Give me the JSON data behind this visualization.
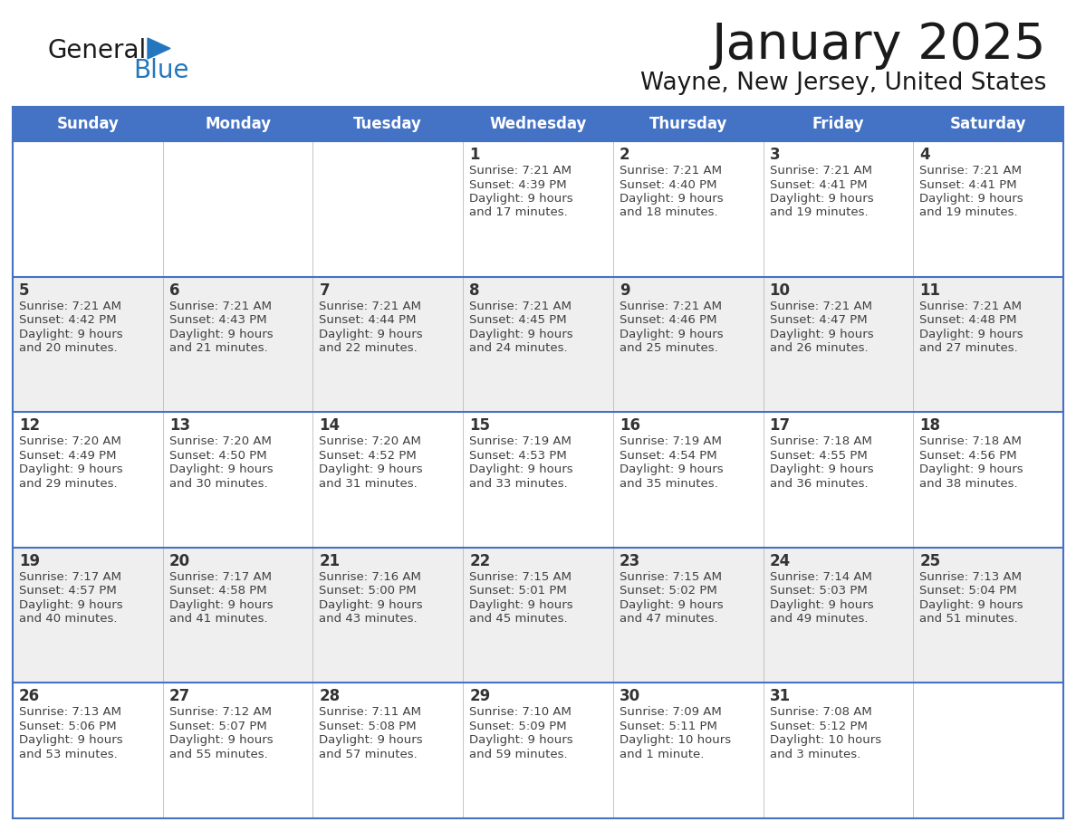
{
  "title": "January 2025",
  "subtitle": "Wayne, New Jersey, United States",
  "days_of_week": [
    "Sunday",
    "Monday",
    "Tuesday",
    "Wednesday",
    "Thursday",
    "Friday",
    "Saturday"
  ],
  "header_bg": "#4472C4",
  "header_text": "#FFFFFF",
  "row_bg_odd": "#FFFFFF",
  "row_bg_even": "#EFEFEF",
  "border_color": "#4472C4",
  "sep_color": "#4472C4",
  "text_color": "#404040",
  "day_num_color": "#333333",
  "logo_general_color": "#1a1a1a",
  "logo_blue_color": "#2477BE",
  "logo_triangle_color": "#2477BE",
  "calendar_data": [
    [
      null,
      null,
      null,
      {
        "day": 1,
        "sunrise": "7:21 AM",
        "sunset": "4:39 PM",
        "daylight": "9 hours and 17 minutes."
      },
      {
        "day": 2,
        "sunrise": "7:21 AM",
        "sunset": "4:40 PM",
        "daylight": "9 hours and 18 minutes."
      },
      {
        "day": 3,
        "sunrise": "7:21 AM",
        "sunset": "4:41 PM",
        "daylight": "9 hours and 19 minutes."
      },
      {
        "day": 4,
        "sunrise": "7:21 AM",
        "sunset": "4:41 PM",
        "daylight": "9 hours and 19 minutes."
      }
    ],
    [
      {
        "day": 5,
        "sunrise": "7:21 AM",
        "sunset": "4:42 PM",
        "daylight": "9 hours and 20 minutes."
      },
      {
        "day": 6,
        "sunrise": "7:21 AM",
        "sunset": "4:43 PM",
        "daylight": "9 hours and 21 minutes."
      },
      {
        "day": 7,
        "sunrise": "7:21 AM",
        "sunset": "4:44 PM",
        "daylight": "9 hours and 22 minutes."
      },
      {
        "day": 8,
        "sunrise": "7:21 AM",
        "sunset": "4:45 PM",
        "daylight": "9 hours and 24 minutes."
      },
      {
        "day": 9,
        "sunrise": "7:21 AM",
        "sunset": "4:46 PM",
        "daylight": "9 hours and 25 minutes."
      },
      {
        "day": 10,
        "sunrise": "7:21 AM",
        "sunset": "4:47 PM",
        "daylight": "9 hours and 26 minutes."
      },
      {
        "day": 11,
        "sunrise": "7:21 AM",
        "sunset": "4:48 PM",
        "daylight": "9 hours and 27 minutes."
      }
    ],
    [
      {
        "day": 12,
        "sunrise": "7:20 AM",
        "sunset": "4:49 PM",
        "daylight": "9 hours and 29 minutes."
      },
      {
        "day": 13,
        "sunrise": "7:20 AM",
        "sunset": "4:50 PM",
        "daylight": "9 hours and 30 minutes."
      },
      {
        "day": 14,
        "sunrise": "7:20 AM",
        "sunset": "4:52 PM",
        "daylight": "9 hours and 31 minutes."
      },
      {
        "day": 15,
        "sunrise": "7:19 AM",
        "sunset": "4:53 PM",
        "daylight": "9 hours and 33 minutes."
      },
      {
        "day": 16,
        "sunrise": "7:19 AM",
        "sunset": "4:54 PM",
        "daylight": "9 hours and 35 minutes."
      },
      {
        "day": 17,
        "sunrise": "7:18 AM",
        "sunset": "4:55 PM",
        "daylight": "9 hours and 36 minutes."
      },
      {
        "day": 18,
        "sunrise": "7:18 AM",
        "sunset": "4:56 PM",
        "daylight": "9 hours and 38 minutes."
      }
    ],
    [
      {
        "day": 19,
        "sunrise": "7:17 AM",
        "sunset": "4:57 PM",
        "daylight": "9 hours and 40 minutes."
      },
      {
        "day": 20,
        "sunrise": "7:17 AM",
        "sunset": "4:58 PM",
        "daylight": "9 hours and 41 minutes."
      },
      {
        "day": 21,
        "sunrise": "7:16 AM",
        "sunset": "5:00 PM",
        "daylight": "9 hours and 43 minutes."
      },
      {
        "day": 22,
        "sunrise": "7:15 AM",
        "sunset": "5:01 PM",
        "daylight": "9 hours and 45 minutes."
      },
      {
        "day": 23,
        "sunrise": "7:15 AM",
        "sunset": "5:02 PM",
        "daylight": "9 hours and 47 minutes."
      },
      {
        "day": 24,
        "sunrise": "7:14 AM",
        "sunset": "5:03 PM",
        "daylight": "9 hours and 49 minutes."
      },
      {
        "day": 25,
        "sunrise": "7:13 AM",
        "sunset": "5:04 PM",
        "daylight": "9 hours and 51 minutes."
      }
    ],
    [
      {
        "day": 26,
        "sunrise": "7:13 AM",
        "sunset": "5:06 PM",
        "daylight": "9 hours and 53 minutes."
      },
      {
        "day": 27,
        "sunrise": "7:12 AM",
        "sunset": "5:07 PM",
        "daylight": "9 hours and 55 minutes."
      },
      {
        "day": 28,
        "sunrise": "7:11 AM",
        "sunset": "5:08 PM",
        "daylight": "9 hours and 57 minutes."
      },
      {
        "day": 29,
        "sunrise": "7:10 AM",
        "sunset": "5:09 PM",
        "daylight": "9 hours and 59 minutes."
      },
      {
        "day": 30,
        "sunrise": "7:09 AM",
        "sunset": "5:11 PM",
        "daylight": "10 hours and 1 minute."
      },
      {
        "day": 31,
        "sunrise": "7:08 AM",
        "sunset": "5:12 PM",
        "daylight": "10 hours and 3 minutes."
      },
      null
    ]
  ]
}
